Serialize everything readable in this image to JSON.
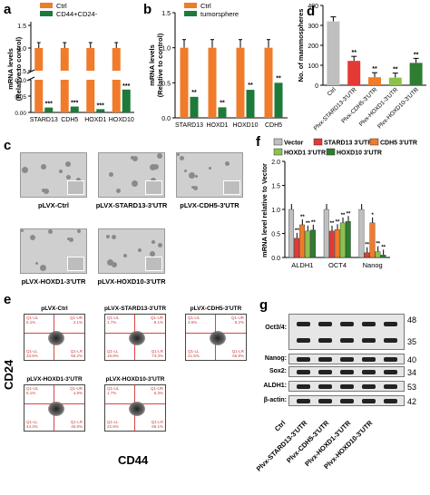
{
  "panels": {
    "a": "a",
    "b": "b",
    "c": "c",
    "d": "d",
    "e": "e",
    "f": "f",
    "g": "g"
  },
  "colors": {
    "orange": "#f07b2a",
    "green": "#1e7a3a",
    "red": "#e53935",
    "gray": "#bfbfbf",
    "lgreen": "#8bc34a",
    "purple": "#3f2a66",
    "dgreen": "#2e7d32"
  },
  "panel_a": {
    "legend": [
      "Ctrl",
      "CD44+CD24-"
    ],
    "ylabel": "mRNA levels (Relative to control)",
    "yticks_top": [
      "1.5",
      "1.0",
      "0.5"
    ],
    "yticks_bottom": [
      "0.10",
      "0.05",
      "0.00"
    ],
    "sig": [
      "***",
      "***",
      "***",
      "***"
    ]
  },
  "panel_b": {
    "legend": [
      "Ctrl",
      "tumorsphere"
    ],
    "ylabel": "mRNA levels (Relative to control)",
    "yticks": [
      "1.5",
      "1.0",
      "0.5",
      "0.0"
    ],
    "sig": [
      "**",
      "**",
      "**",
      "**"
    ]
  },
  "panel_c": {
    "labels": [
      "pLVX-Ctrl",
      "pLVX-STARD13-3'UTR",
      "pLVX-CDH5-3'UTR",
      "pLVX-HOXD1-3'UTR",
      "pLVX-HOXD10-3'UTR"
    ]
  },
  "panel_d": {
    "ylabel": "No. of mammospheres",
    "yticks": [
      "400",
      "300",
      "200",
      "100",
      "0"
    ],
    "sig": [
      "**",
      "**",
      "**",
      "**"
    ]
  },
  "panel_e": {
    "ylabel": "CD24",
    "xlabel": "CD44",
    "plots": [
      {
        "title": "pLVX-Ctrl",
        "ul": "Q1-UL\n6.1%",
        "ur": "Q1-UR\n4.1%",
        "ll": "Q1-LL\n33.5%",
        "lr": "Q1-LR\n56.2%"
      },
      {
        "title": "pLVX-STARD13-3'UTR",
        "ul": "Q1-UL\n1.7%",
        "ur": "Q1-UR\n9.1%",
        "ll": "Q1-LL\n19.9%",
        "lr": "Q1-LR\n73.3%"
      },
      {
        "title": "pLVX-CDH5-3'UTR",
        "ul": "Q1-UL\n3.6%",
        "ur": "Q1-UR\n8.2%",
        "ll": "Q1-LL\n21.5%",
        "lr": "Q1-LR\n66.8%"
      },
      {
        "title": "pLVX-HOXD1-3'UTR",
        "ul": "Q1-UL\n5.1%",
        "ur": "Q1-UR\n4.8%",
        "ll": "Q1-LL\n44.3%",
        "lr": "Q1-LR\n45.8%"
      },
      {
        "title": "pLVX-HOXD10-3'UTR",
        "ul": "Q1-UL\n1.7%",
        "ur": "Q1-UR\n6.3%",
        "ll": "Q1-LL\n22.9%",
        "lr": "Q1-LR\n69.1%"
      }
    ]
  },
  "panel_f": {
    "legend": [
      "Vector",
      "STARD13 3'UTR",
      "CDH5 3'UTR",
      "HOXD1 3'UTR",
      "HOXD10 3'UTR"
    ],
    "ylabel": "mRNA level relative to Vector",
    "yticks": [
      "2.0",
      "1.5",
      "1.0",
      "0.5",
      "0.0"
    ]
  },
  "panel_g": {
    "rows": [
      "Oct3/4:",
      "Nanog:",
      "Sox2:",
      "ALDH1:",
      "β-actin:"
    ],
    "mw": [
      "48",
      "35",
      "40",
      "34",
      "53",
      "42"
    ],
    "lanes": [
      "Ctrl",
      "Plvx-STARD13-3'UTR",
      "Plvx-CDH5-3'UTR",
      "Plvx-HOXD1-3'UTR",
      "Plvx-HOXD10-3'UTR"
    ]
  },
  "chart_data": [
    {
      "type": "bar",
      "title": "",
      "categories": [
        "STARD13",
        "CDH5",
        "HOXD1",
        "HOXD10"
      ],
      "series": [
        {
          "name": "Ctrl",
          "values": [
            1.0,
            1.0,
            1.0,
            1.0
          ]
        },
        {
          "name": "CD44+CD24-",
          "values": [
            0.015,
            0.018,
            0.01,
            0.07
          ]
        }
      ],
      "ylabel": "mRNA levels (Relative to control)",
      "ylim": [
        0,
        1.5
      ],
      "legend": "top-left"
    },
    {
      "type": "bar",
      "title": "",
      "categories": [
        "STARD13",
        "HOXD1",
        "HOXD10",
        "CDH5"
      ],
      "series": [
        {
          "name": "Ctrl",
          "values": [
            1.0,
            1.0,
            1.0,
            1.0
          ]
        },
        {
          "name": "tumorsphere",
          "values": [
            0.3,
            0.15,
            0.4,
            0.5
          ]
        }
      ],
      "ylabel": "mRNA levels (Relative to control)",
      "ylim": [
        0,
        1.5
      ],
      "legend": "top-left"
    },
    {
      "type": "bar",
      "title": "",
      "categories": [
        "Ctrl",
        "Plvx-STARD13-3'UTR",
        "Plvx-CDH5-3'UTR",
        "Plvx-HOXD1-3'UTR",
        "Plvx-HOXD10-3'UTR"
      ],
      "values": [
        320,
        122,
        40,
        38,
        112
      ],
      "ylabel": "No. of mammospheres",
      "ylim": [
        0,
        400
      ]
    },
    {
      "type": "bar",
      "title": "",
      "categories": [
        "ALDH1",
        "OCT4",
        "Nanog"
      ],
      "series": [
        {
          "name": "Vector",
          "values": [
            1.0,
            1.0,
            1.0
          ]
        },
        {
          "name": "STARD13 3'UTR",
          "values": [
            0.4,
            0.55,
            0.1
          ]
        },
        {
          "name": "CDH5 3'UTR",
          "values": [
            0.68,
            0.58,
            0.72
          ]
        },
        {
          "name": "HOXD1 3'UTR",
          "values": [
            0.55,
            0.72,
            0.12
          ]
        },
        {
          "name": "HOXD10 3'UTR",
          "values": [
            0.57,
            0.75,
            0.05
          ]
        }
      ],
      "ylabel": "mRNA level relative to Vector",
      "ylim": [
        0,
        2.0
      ],
      "legend": "top"
    }
  ]
}
